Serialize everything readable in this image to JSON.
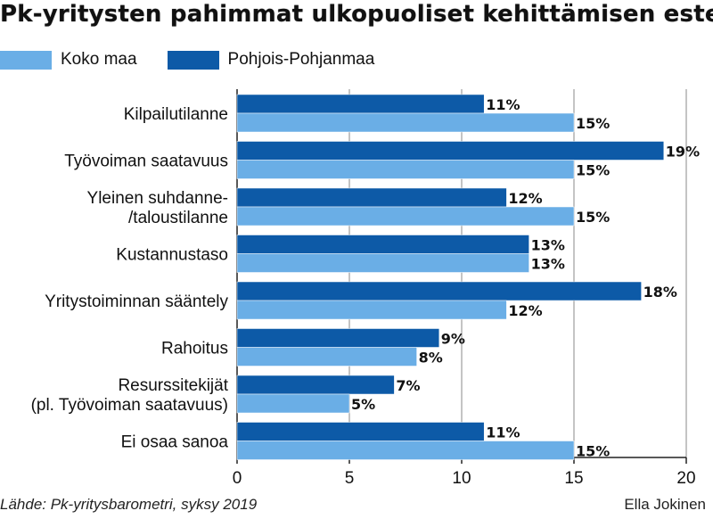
{
  "title": "Pk-yritysten pahimmat ulkopuoliset kehittämisen esteet",
  "source": "Lähde: Pk-yritysbarometri, syksy 2019",
  "author": "Ella Jokinen",
  "colors": {
    "koko_maa": "#6aaee6",
    "pohjois_pohjanmaa": "#0d5aa7",
    "grid": "#8a8a8a",
    "axis": "#222222"
  },
  "chart_data": {
    "type": "bar",
    "orientation": "horizontal",
    "title": "Pk-yritysten pahimmat ulkopuoliset kehittämisen esteet",
    "categories": [
      [
        "Kilpailutilanne"
      ],
      [
        "Työvoiman saatavuus"
      ],
      [
        "Yleinen suhdanne-",
        "/taloustilanne"
      ],
      [
        "Kustannustaso"
      ],
      [
        "Yritystoiminnan sääntely"
      ],
      [
        "Rahoitus"
      ],
      [
        "Resurssitekijät",
        "(pl. Työvoiman saatavuus)"
      ],
      [
        "Ei osaa sanoa"
      ]
    ],
    "series": [
      {
        "name": "Pohjois-Pohjanmaa",
        "values": [
          11,
          19,
          12,
          13,
          18,
          9,
          7,
          11
        ],
        "labels": [
          "11%",
          "19%",
          "12%",
          "13%",
          "18%",
          "9%",
          "7%",
          "11%"
        ]
      },
      {
        "name": "Koko maa",
        "values": [
          15,
          15,
          15,
          13,
          12,
          8,
          5,
          15
        ],
        "labels": [
          "15%",
          "15%",
          "15%",
          "13%",
          "12%",
          "8%",
          "5%",
          "15%"
        ]
      }
    ],
    "legend_order": [
      "Koko maa",
      "Pohjois-Pohjanmaa"
    ],
    "xlim": [
      0,
      20
    ],
    "xticks": [
      0,
      5,
      10,
      15,
      20
    ],
    "grid": true,
    "legend_position": "top-left"
  }
}
